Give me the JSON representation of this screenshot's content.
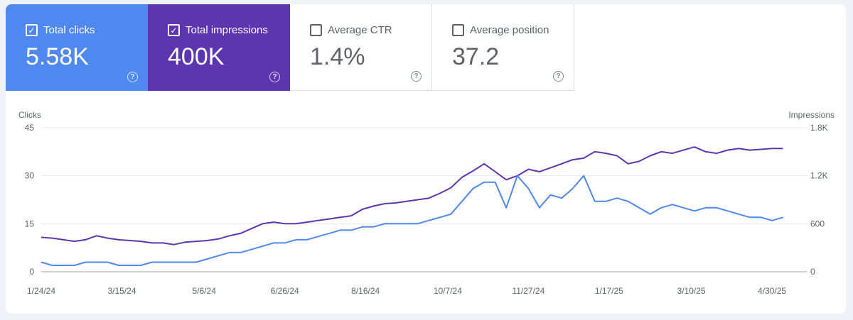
{
  "metrics": [
    {
      "label": "Total clicks",
      "value": "5.58K",
      "checked": true,
      "color": "#4f88f0",
      "text_color": "#ffffff"
    },
    {
      "label": "Total impressions",
      "value": "400K",
      "checked": true,
      "color": "#5e35b1",
      "text_color": "#ffffff"
    },
    {
      "label": "Average CTR",
      "value": "1.4%",
      "checked": false,
      "color": "#ffffff",
      "text_color": "#5f6368"
    },
    {
      "label": "Average position",
      "value": "37.2",
      "checked": false,
      "color": "#ffffff",
      "text_color": "#5f6368"
    }
  ],
  "help_icon": "help-circle-icon",
  "check_icon": "checkbox-icon",
  "chart_data": {
    "type": "line",
    "title": "",
    "grid": true,
    "legend": "none",
    "x_ticks": [
      "1/24/24",
      "3/15/24",
      "5/6/24",
      "6/26/24",
      "8/16/24",
      "10/7/24",
      "11/27/24",
      "1/17/25",
      "3/10/25",
      "4/30/25"
    ],
    "x_range": [
      "2024-01-24",
      "2025-05-22"
    ],
    "y_left": {
      "label": "Clicks",
      "ticks": [
        "0",
        "15",
        "30",
        "45"
      ],
      "range": [
        0,
        45
      ]
    },
    "y_right": {
      "label": "Impressions",
      "ticks": [
        "0",
        "600",
        "1.2K",
        "1.8K"
      ],
      "range": [
        0,
        1800
      ]
    },
    "series": [
      {
        "name": "Impressions",
        "axis": "right",
        "color": "#5e35b1",
        "start": "2024-01-24",
        "step_days": 7,
        "values": [
          430,
          420,
          400,
          380,
          400,
          450,
          420,
          400,
          390,
          380,
          360,
          360,
          340,
          370,
          380,
          390,
          410,
          450,
          480,
          540,
          600,
          620,
          600,
          600,
          620,
          640,
          660,
          680,
          700,
          780,
          820,
          850,
          860,
          880,
          900,
          920,
          980,
          1050,
          1180,
          1260,
          1350,
          1250,
          1150,
          1200,
          1280,
          1250,
          1300,
          1350,
          1400,
          1420,
          1500,
          1480,
          1450,
          1350,
          1380,
          1450,
          1500,
          1480,
          1520,
          1560,
          1500,
          1480,
          1520,
          1540,
          1520,
          1530,
          1540,
          1540
        ]
      },
      {
        "name": "Clicks",
        "axis": "left",
        "color": "#4f88f0",
        "start": "2024-01-24",
        "step_days": 7,
        "values": [
          3,
          2,
          2,
          2,
          3,
          3,
          3,
          2,
          2,
          2,
          3,
          3,
          3,
          3,
          3,
          4,
          5,
          6,
          6,
          7,
          8,
          9,
          9,
          10,
          10,
          11,
          12,
          13,
          13,
          14,
          14,
          15,
          15,
          15,
          15,
          16,
          17,
          18,
          22,
          26,
          28,
          28,
          20,
          30,
          26,
          20,
          24,
          23,
          26,
          30,
          22,
          22,
          23,
          22,
          20,
          18,
          20,
          21,
          20,
          19,
          20,
          20,
          19,
          18,
          17,
          17,
          16,
          17
        ]
      }
    ]
  }
}
